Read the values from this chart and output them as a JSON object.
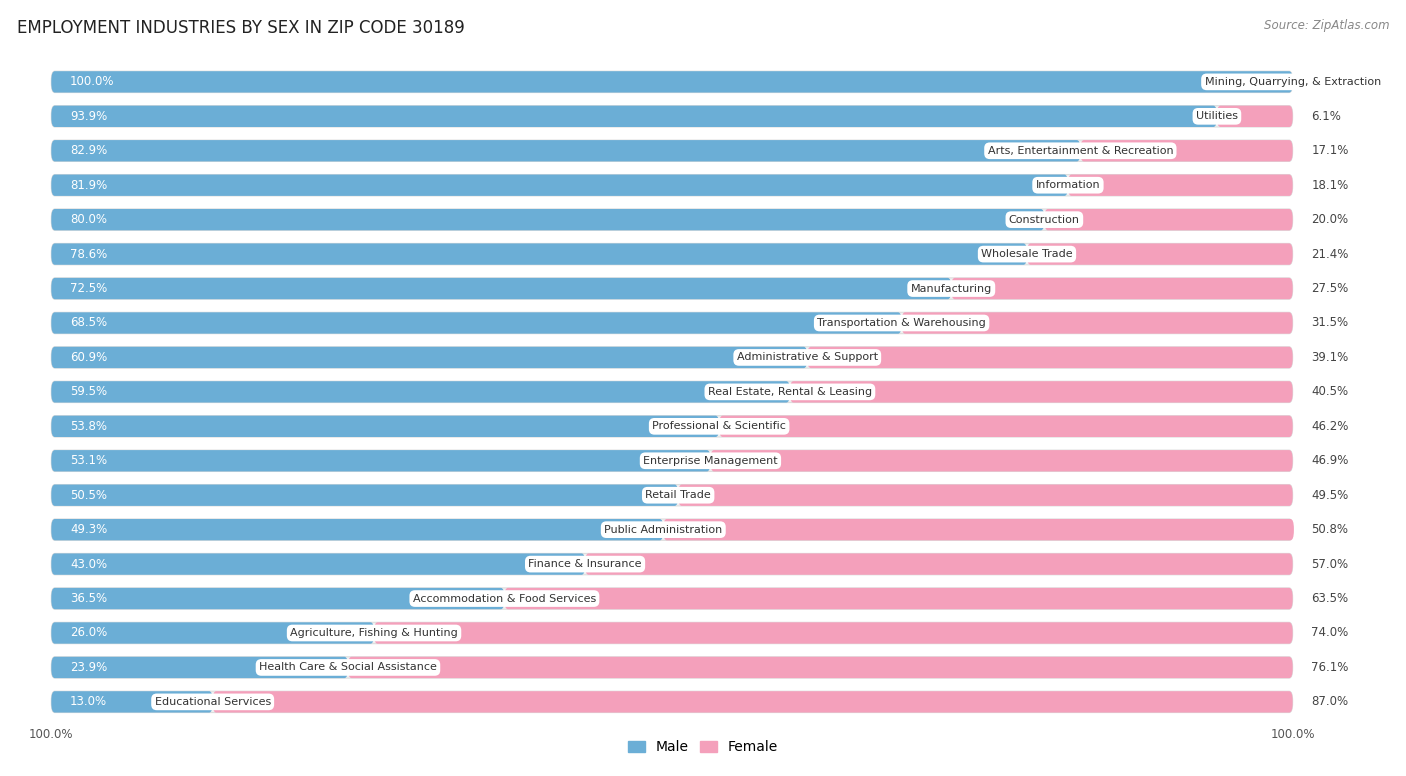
{
  "title": "EMPLOYMENT INDUSTRIES BY SEX IN ZIP CODE 30189",
  "source": "Source: ZipAtlas.com",
  "industries": [
    "Mining, Quarrying, & Extraction",
    "Utilities",
    "Arts, Entertainment & Recreation",
    "Information",
    "Construction",
    "Wholesale Trade",
    "Manufacturing",
    "Transportation & Warehousing",
    "Administrative & Support",
    "Real Estate, Rental & Leasing",
    "Professional & Scientific",
    "Enterprise Management",
    "Retail Trade",
    "Public Administration",
    "Finance & Insurance",
    "Accommodation & Food Services",
    "Agriculture, Fishing & Hunting",
    "Health Care & Social Assistance",
    "Educational Services"
  ],
  "male": [
    100.0,
    93.9,
    82.9,
    81.9,
    80.0,
    78.6,
    72.5,
    68.5,
    60.9,
    59.5,
    53.8,
    53.1,
    50.5,
    49.3,
    43.0,
    36.5,
    26.0,
    23.9,
    13.0
  ],
  "female": [
    0.0,
    6.1,
    17.1,
    18.1,
    20.0,
    21.4,
    27.5,
    31.5,
    39.1,
    40.5,
    46.2,
    46.9,
    49.5,
    50.8,
    57.0,
    63.5,
    74.0,
    76.1,
    87.0
  ],
  "male_color": "#6BAED6",
  "female_color": "#F4A0BB",
  "bg_color": "#FFFFFF",
  "bar_bg_color": "#F0F0F0",
  "bar_border_color": "#DDDDDD",
  "title_fontsize": 12,
  "label_fontsize": 8.5,
  "source_fontsize": 8.5,
  "bar_height": 0.62,
  "figsize": [
    14.06,
    7.76
  ],
  "xlim_left": -2,
  "xlim_right": 110
}
